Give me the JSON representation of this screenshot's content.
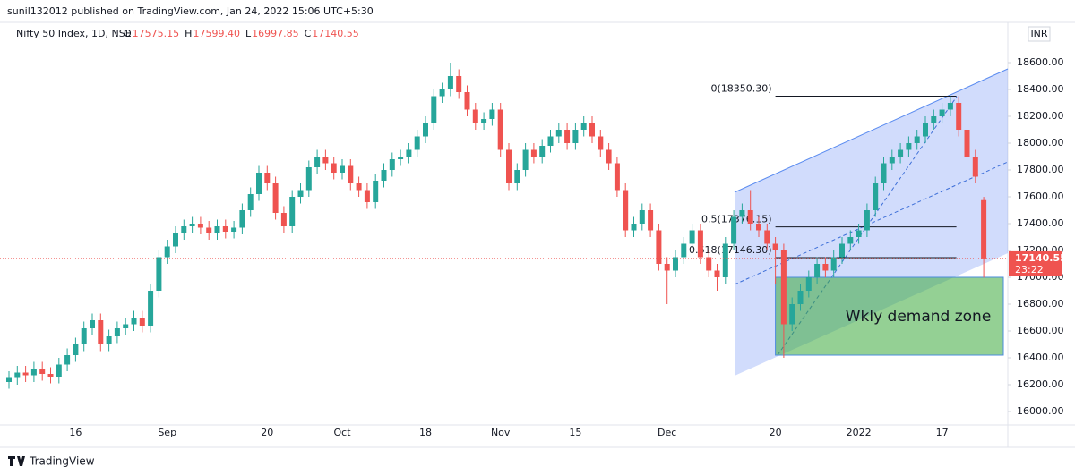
{
  "chart_data": {
    "type": "candlestick",
    "source": "sunil132012 published on TradingView.com, Jan 24, 2022 15:06 UTC+5:30",
    "symbol": "Nifty 50 Index, 1D, NSE",
    "ohlc_legend": [
      {
        "key": "O",
        "value": "17575.15"
      },
      {
        "key": "H",
        "value": "17599.40"
      },
      {
        "key": "L",
        "value": "16997.85"
      },
      {
        "key": "C",
        "value": "17140.55"
      }
    ],
    "currency": "INR",
    "brand": "TradingView",
    "categories": [
      null,
      null,
      null,
      null,
      null,
      null,
      null,
      null,
      "16",
      null,
      null,
      null,
      null,
      null,
      null,
      null,
      null,
      null,
      null,
      "Sep",
      null,
      null,
      null,
      null,
      null,
      null,
      null,
      null,
      null,
      null,
      null,
      "20",
      null,
      null,
      null,
      null,
      null,
      null,
      null,
      null,
      "Oct",
      null,
      null,
      null,
      null,
      null,
      null,
      null,
      null,
      null,
      "18",
      null,
      null,
      null,
      null,
      null,
      null,
      null,
      null,
      "Nov",
      null,
      null,
      null,
      null,
      null,
      null,
      null,
      null,
      "15",
      null,
      null,
      null,
      null,
      null,
      null,
      null,
      null,
      null,
      null,
      "Dec",
      null,
      null,
      null,
      null,
      null,
      null,
      null,
      null,
      null,
      null,
      null,
      null,
      "20",
      null,
      null,
      null,
      null,
      null,
      null,
      null,
      null,
      null,
      "2022",
      null,
      null,
      null,
      null,
      null,
      null,
      null,
      null,
      null,
      "17",
      null,
      null,
      null,
      null,
      null
    ],
    "open": [
      16220,
      16250,
      16290,
      16270,
      16320,
      16280,
      16260,
      16350,
      16420,
      16500,
      16620,
      16680,
      16500,
      16560,
      16620,
      16650,
      16700,
      16640,
      16900,
      17150,
      17230,
      17330,
      17380,
      17400,
      17370,
      17330,
      17380,
      17340,
      17370,
      17500,
      17620,
      17780,
      17700,
      17480,
      17380,
      17600,
      17650,
      17820,
      17900,
      17850,
      17780,
      17830,
      17700,
      17650,
      17560,
      17720,
      17800,
      17880,
      17900,
      17950,
      18050,
      18150,
      18350,
      18400,
      18500,
      18380,
      18250,
      18150,
      18180,
      18250,
      17950,
      17700,
      17800,
      17950,
      17900,
      17980,
      18050,
      18100,
      18000,
      18100,
      18150,
      18050,
      17950,
      17850,
      17650,
      17350,
      17400,
      17500,
      17350,
      17100,
      17050,
      17150,
      17250,
      17350,
      17150,
      17050,
      17000,
      17250,
      17450,
      17500,
      17400,
      17350,
      17250,
      17200,
      16650,
      16800,
      16900,
      17000,
      17100,
      17050,
      17150,
      17250,
      17300,
      17350,
      17500,
      17700,
      17850,
      17900,
      17950,
      18000,
      18050,
      18150,
      18200,
      18250,
      18300,
      18100,
      17900,
      17575.15
    ],
    "high": [
      16300,
      16340,
      16340,
      16370,
      16370,
      16330,
      16400,
      16470,
      16550,
      16670,
      16730,
      16730,
      16610,
      16670,
      16700,
      16750,
      16750,
      16950,
      17200,
      17280,
      17380,
      17430,
      17450,
      17450,
      17420,
      17430,
      17430,
      17420,
      17550,
      17670,
      17830,
      17830,
      17750,
      17530,
      17650,
      17700,
      17870,
      17950,
      17950,
      17900,
      17880,
      17880,
      17750,
      17700,
      17770,
      17850,
      17930,
      17950,
      18000,
      18100,
      18200,
      18400,
      18450,
      18600,
      18550,
      18430,
      18300,
      18230,
      18300,
      18300,
      18000,
      17850,
      18000,
      18000,
      18030,
      18100,
      18150,
      18150,
      18150,
      18200,
      18200,
      18100,
      18000,
      17900,
      17700,
      17450,
      17550,
      17550,
      17400,
      17150,
      17200,
      17300,
      17400,
      17400,
      17200,
      17100,
      17300,
      17500,
      17550,
      17650,
      17450,
      17400,
      17300,
      17250,
      16850,
      16950,
      17050,
      17150,
      17150,
      17200,
      17300,
      17350,
      17400,
      17550,
      17750,
      17900,
      17950,
      18000,
      18050,
      18100,
      18200,
      18250,
      18300,
      18350,
      18350,
      18150,
      17950,
      17599.4
    ],
    "low": [
      16170,
      16200,
      16220,
      16220,
      16230,
      16210,
      16210,
      16300,
      16370,
      16450,
      16570,
      16450,
      16450,
      16510,
      16570,
      16600,
      16590,
      16590,
      16850,
      17100,
      17180,
      17280,
      17330,
      17320,
      17280,
      17280,
      17290,
      17290,
      17320,
      17450,
      17570,
      17650,
      17430,
      17330,
      17330,
      17550,
      17600,
      17770,
      17800,
      17730,
      17730,
      17650,
      17600,
      17510,
      17510,
      17670,
      17750,
      17830,
      17850,
      17900,
      18000,
      18100,
      18300,
      18350,
      18330,
      18200,
      18100,
      18100,
      18130,
      17900,
      17650,
      17650,
      17750,
      17850,
      17850,
      17930,
      18000,
      17950,
      17950,
      18050,
      18000,
      17900,
      17800,
      17600,
      17300,
      17300,
      17350,
      17300,
      17050,
      16800,
      17000,
      17100,
      17200,
      17100,
      17000,
      16900,
      16950,
      17200,
      17400,
      17350,
      17300,
      17200,
      16950,
      16400,
      16600,
      16750,
      16850,
      16950,
      17000,
      17000,
      17100,
      17200,
      17250,
      17300,
      17450,
      17650,
      17800,
      17850,
      17900,
      17950,
      18000,
      18100,
      18150,
      18200,
      18050,
      17850,
      17700,
      16997.85
    ],
    "close": [
      16250,
      16290,
      16270,
      16320,
      16280,
      16260,
      16350,
      16420,
      16500,
      16620,
      16680,
      16500,
      16560,
      16620,
      16650,
      16700,
      16640,
      16900,
      17150,
      17230,
      17330,
      17380,
      17400,
      17370,
      17330,
      17380,
      17340,
      17370,
      17500,
      17620,
      17780,
      17700,
      17480,
      17380,
      17600,
      17650,
      17820,
      17900,
      17850,
      17780,
      17830,
      17700,
      17650,
      17560,
      17720,
      17800,
      17880,
      17900,
      17950,
      18050,
      18150,
      18350,
      18400,
      18500,
      18380,
      18250,
      18150,
      18180,
      18250,
      17950,
      17700,
      17800,
      17950,
      17900,
      17980,
      18050,
      18100,
      18000,
      18100,
      18150,
      18050,
      17950,
      17850,
      17650,
      17350,
      17400,
      17500,
      17350,
      17100,
      17050,
      17150,
      17250,
      17350,
      17150,
      17050,
      17000,
      17250,
      17450,
      17500,
      17400,
      17350,
      17250,
      17200,
      16650,
      16800,
      16900,
      17000,
      17100,
      17050,
      17150,
      17250,
      17300,
      17350,
      17500,
      17700,
      17850,
      17900,
      17950,
      18000,
      18050,
      18150,
      18200,
      18250,
      18300,
      18100,
      17900,
      17750,
      17140.55
    ],
    "up_color": "#26a69a",
    "down_color": "#ef5350",
    "ylim": [
      15900,
      18900
    ],
    "yticks": [
      {
        "value": 16000,
        "label": "16000.00"
      },
      {
        "value": 16200,
        "label": "16200.00"
      },
      {
        "value": 16400,
        "label": "16400.00"
      },
      {
        "value": 16600,
        "label": "16600.00"
      },
      {
        "value": 16800,
        "label": "16800.00"
      },
      {
        "value": 17000,
        "label": "17000.00"
      },
      {
        "value": 17200,
        "label": "17200.00"
      },
      {
        "value": 17400,
        "label": "17400.00"
      },
      {
        "value": 17600,
        "label": "17600.00"
      },
      {
        "value": 17800,
        "label": "17800.00"
      },
      {
        "value": 18000,
        "label": "18000.00"
      },
      {
        "value": 18200,
        "label": "18200.00"
      },
      {
        "value": 18400,
        "label": "18400.00"
      },
      {
        "value": 18600,
        "label": "18600.00"
      }
    ],
    "grid": false,
    "last_price": {
      "value": 17140.55,
      "label": "17140.55",
      "countdown": "23:22"
    },
    "fib_levels": [
      {
        "value": 18350.3,
        "label": "0(18350.30)"
      },
      {
        "value": 17376.15,
        "label": "0.5(17376.15)"
      },
      {
        "value": 17146.3,
        "label": "0.618(17146.30)"
      }
    ],
    "demand_zone": {
      "label": "Wkly demand zone",
      "top": 17000,
      "bottom": 16420
    }
  }
}
